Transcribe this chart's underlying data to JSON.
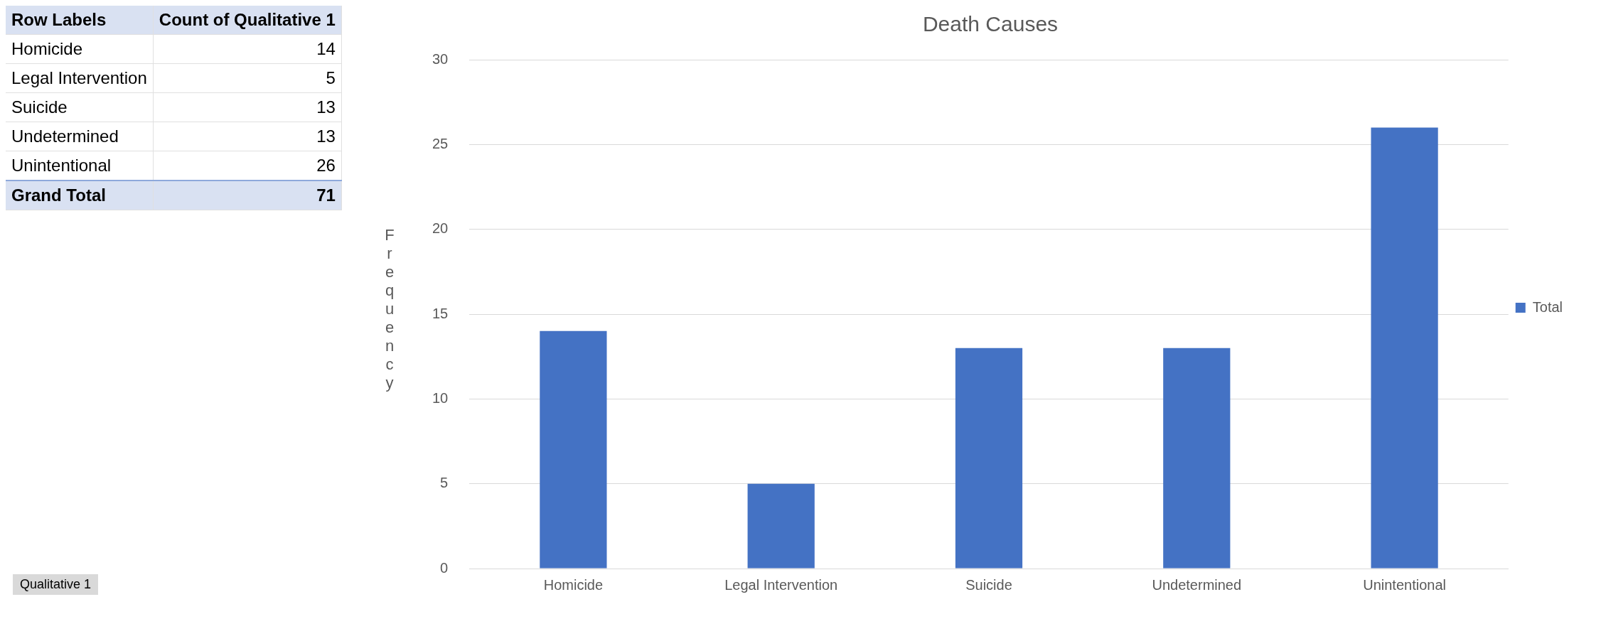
{
  "chart_data": {
    "type": "bar",
    "title": "Death Causes",
    "ylabel": "Frequency",
    "categories": [
      "Homicide",
      "Legal Intervention",
      "Suicide",
      "Undetermined",
      "Unintentional"
    ],
    "series": [
      {
        "name": "Total",
        "color": "#4472c4",
        "values": [
          14,
          5,
          13,
          13,
          26
        ]
      }
    ],
    "ylim": [
      0,
      30
    ],
    "yticks": [
      0,
      5,
      10,
      15,
      20,
      25,
      30
    ],
    "grid": "y",
    "legend": "right",
    "annotations": [
      "Row Labels",
      "Count of Qualitative 1",
      "14",
      "5",
      "13",
      "13",
      "26",
      "Grand Total",
      "71",
      "Qualitative 1"
    ]
  }
}
